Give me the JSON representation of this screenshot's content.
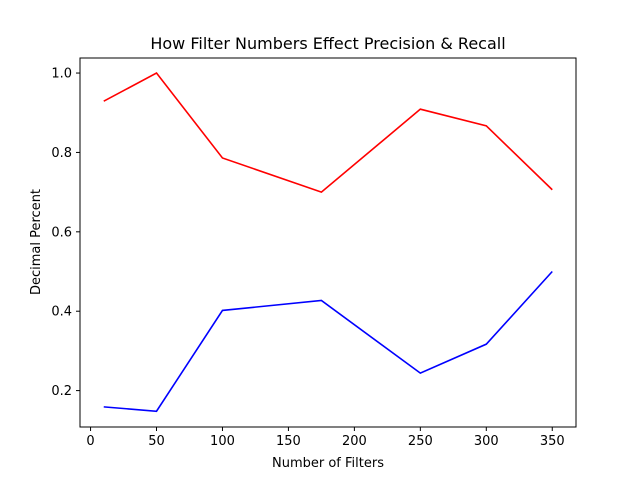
{
  "chart_data": {
    "type": "line",
    "title": "How Filter Numbers Effect Precision & Recall",
    "xlabel": "Number of Filters",
    "ylabel": "Decimal Percent",
    "xlim": [
      -8,
      368
    ],
    "ylim": [
      0.1083,
      1.0379
    ],
    "xticks": [
      0,
      50,
      100,
      150,
      200,
      250,
      300,
      350
    ],
    "xtick_labels": [
      "0",
      "50",
      "100",
      "150",
      "200",
      "250",
      "300",
      "350"
    ],
    "yticks": [
      0.2,
      0.4,
      0.6,
      0.8,
      1.0
    ],
    "ytick_labels": [
      "0.2",
      "0.4",
      "0.6",
      "0.8",
      "1.0"
    ],
    "grid": false,
    "legend": "none",
    "series": [
      {
        "color": "#ff0000",
        "x": [
          10,
          50,
          100,
          175,
          250,
          300,
          350
        ],
        "y": [
          0.929,
          1.0,
          0.786,
          0.7,
          0.909,
          0.867,
          0.706
        ]
      },
      {
        "color": "#0000ff",
        "x": [
          10,
          50,
          100,
          175,
          250,
          300,
          350
        ],
        "y": [
          0.159,
          0.148,
          0.402,
          0.427,
          0.244,
          0.317,
          0.5
        ]
      }
    ]
  }
}
